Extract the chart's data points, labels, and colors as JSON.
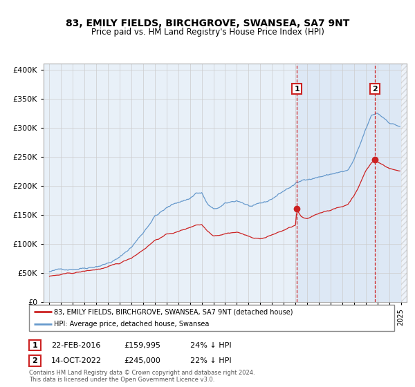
{
  "title": "83, EMILY FIELDS, BIRCHGROVE, SWANSEA, SA7 9NT",
  "subtitle": "Price paid vs. HM Land Registry's House Price Index (HPI)",
  "legend_house": "83, EMILY FIELDS, BIRCHGROVE, SWANSEA, SA7 9NT (detached house)",
  "legend_hpi": "HPI: Average price, detached house, Swansea",
  "transaction1_date": "22-FEB-2016",
  "transaction1_price": "£159,995",
  "transaction1_hpi": "24% ↓ HPI",
  "transaction1_x": 2016.12,
  "transaction1_y": 159995,
  "transaction2_date": "14-OCT-2022",
  "transaction2_price": "£245,000",
  "transaction2_hpi": "22% ↓ HPI",
  "transaction2_x": 2022.79,
  "transaction2_y": 245000,
  "footer": "Contains HM Land Registry data © Crown copyright and database right 2024.\nThis data is licensed under the Open Government Licence v3.0.",
  "ylim": [
    0,
    410000
  ],
  "xlim_start": 1994.5,
  "xlim_end": 2025.5,
  "hpi_color": "#6699cc",
  "house_color": "#cc2222",
  "background_plot": "#e8f0f8",
  "background_shade": "#dde8f5",
  "grid_color": "#cccccc",
  "dashed_line_color": "#cc2222",
  "hpi_anchors_x": [
    1995.0,
    1996.0,
    1997.0,
    1998.0,
    1999.0,
    2000.0,
    2001.0,
    2002.0,
    2003.0,
    2004.0,
    2005.0,
    2006.0,
    2007.0,
    2007.5,
    2008.0,
    2008.5,
    2009.0,
    2009.5,
    2010.0,
    2010.5,
    2011.0,
    2011.5,
    2012.0,
    2012.5,
    2013.0,
    2013.5,
    2014.0,
    2014.5,
    2015.0,
    2015.5,
    2016.0,
    2016.5,
    2017.0,
    2017.5,
    2018.0,
    2018.5,
    2019.0,
    2019.5,
    2020.0,
    2020.5,
    2021.0,
    2021.5,
    2022.0,
    2022.5,
    2023.0,
    2023.5,
    2024.0,
    2024.83
  ],
  "hpi_anchors_y": [
    52000,
    55000,
    58000,
    62000,
    67000,
    73000,
    82000,
    100000,
    125000,
    155000,
    168000,
    178000,
    185000,
    195000,
    195000,
    175000,
    165000,
    168000,
    173000,
    175000,
    178000,
    175000,
    170000,
    168000,
    170000,
    172000,
    178000,
    185000,
    192000,
    198000,
    204000,
    208000,
    213000,
    215000,
    218000,
    220000,
    222000,
    225000,
    226000,
    228000,
    245000,
    268000,
    295000,
    318000,
    322000,
    315000,
    308000,
    302000
  ],
  "house_anchors_x": [
    1995.0,
    1996.0,
    1997.0,
    1998.0,
    1999.0,
    2000.0,
    2001.0,
    2002.0,
    2003.0,
    2004.0,
    2005.0,
    2006.0,
    2007.0,
    2007.5,
    2008.0,
    2008.5,
    2009.0,
    2009.5,
    2010.0,
    2010.5,
    2011.0,
    2011.5,
    2012.0,
    2012.5,
    2013.0,
    2013.5,
    2014.0,
    2014.5,
    2015.0,
    2015.5,
    2016.0,
    2016.12,
    2016.5,
    2017.0,
    2017.5,
    2018.0,
    2018.5,
    2019.0,
    2019.5,
    2020.0,
    2020.5,
    2021.0,
    2021.5,
    2022.0,
    2022.5,
    2022.79,
    2023.0,
    2023.5,
    2024.0,
    2024.83
  ],
  "house_anchors_y": [
    44000,
    46000,
    48000,
    51000,
    54000,
    58000,
    63000,
    73000,
    88000,
    105000,
    115000,
    120000,
    127000,
    132000,
    133000,
    122000,
    115000,
    117000,
    120000,
    122000,
    123000,
    120000,
    115000,
    113000,
    112000,
    114000,
    118000,
    122000,
    126000,
    130000,
    134000,
    159995,
    148000,
    143000,
    148000,
    153000,
    157000,
    160000,
    163000,
    165000,
    170000,
    185000,
    205000,
    228000,
    242000,
    245000,
    243000,
    238000,
    233000,
    228000
  ]
}
